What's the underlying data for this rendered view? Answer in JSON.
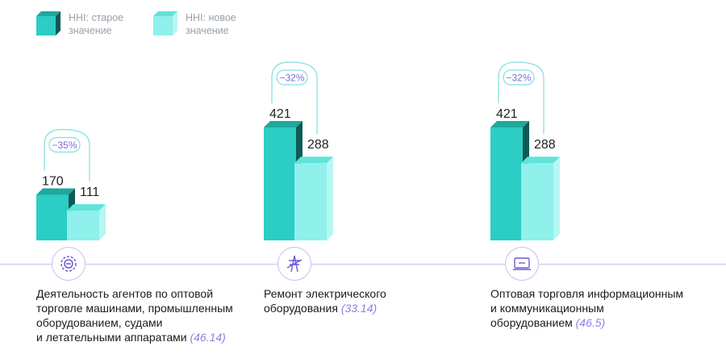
{
  "legend": {
    "old_label": "HHI: старое\nзначение",
    "new_label": "HHI: новое\nзначение"
  },
  "colors": {
    "old_front": "#2bcdc4",
    "old_top": "#20a89d",
    "old_side": "#0f5a54",
    "new_front": "#8ff0ec",
    "new_top": "#5fe3da",
    "new_side": "#b6f6f3",
    "ring": "#7fe0dc",
    "axis": "#c9c2ee",
    "index": "#8f7fe0"
  },
  "chart_data": {
    "type": "bar",
    "categories": [
      "Деятельность агентов по оптовой торговле машинами, промышленным оборудованием, судами и летательными аппаратами",
      "Ремонт электрического оборудования",
      "Оптовая торговля информационным и коммуникационным оборудованием"
    ],
    "series": [
      {
        "name": "HHI: старое значение",
        "values": [
          170,
          421,
          421
        ]
      },
      {
        "name": "HHI: новое значение",
        "values": [
          111,
          288,
          288
        ]
      }
    ],
    "changes": [
      "−35%",
      "−32%",
      "−32%"
    ],
    "indices": [
      "(46.14)",
      "(33.14)",
      "(46.5)"
    ],
    "icons": [
      "gear-icon",
      "power-line-icon",
      "computer-icon"
    ],
    "labels": [
      {
        "lines": [
          "Деятельность агентов по оптовой",
          "торговле машинами, промышленным",
          "оборудованием, судами",
          "и летательными аппаратами"
        ]
      },
      {
        "lines": [
          "Ремонт электрического",
          "оборудования"
        ]
      },
      {
        "lines": [
          "Оптовая торговля информационным",
          "и коммуникационным",
          "оборудованием"
        ]
      }
    ]
  }
}
